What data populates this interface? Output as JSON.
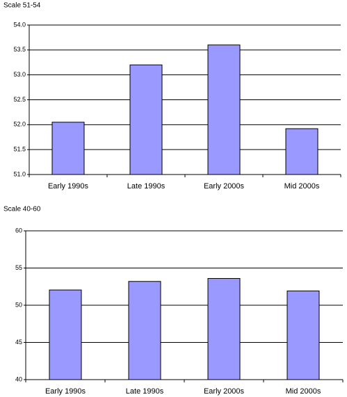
{
  "chart_data": [
    {
      "type": "bar",
      "title": "Scale 51-54",
      "categories": [
        "Early 1990s",
        "Late 1990s",
        "Early 2000s",
        "Mid 2000s"
      ],
      "values": [
        52.05,
        53.2,
        53.6,
        51.92
      ],
      "color": "#9999ff",
      "ylim": [
        51,
        54
      ],
      "yticks": [
        {
          "value": 51,
          "label": "51.0"
        },
        51.5,
        {
          "value": 52,
          "label": "52.0"
        },
        52.5,
        {
          "value": 53,
          "label": "53.0"
        },
        53.5,
        {
          "value": 54,
          "label": "54.0"
        }
      ],
      "grid": true
    },
    {
      "type": "bar",
      "title": "Scale 40-60",
      "categories": [
        "Early 1990s",
        "Late 1990s",
        "Early 2000s",
        "Mid 2000s"
      ],
      "values": [
        52.05,
        53.2,
        53.6,
        51.92
      ],
      "color": "#9999ff",
      "ylim": [
        40,
        60
      ],
      "yticks": [
        40,
        45,
        50,
        55,
        60
      ],
      "grid": true
    }
  ]
}
